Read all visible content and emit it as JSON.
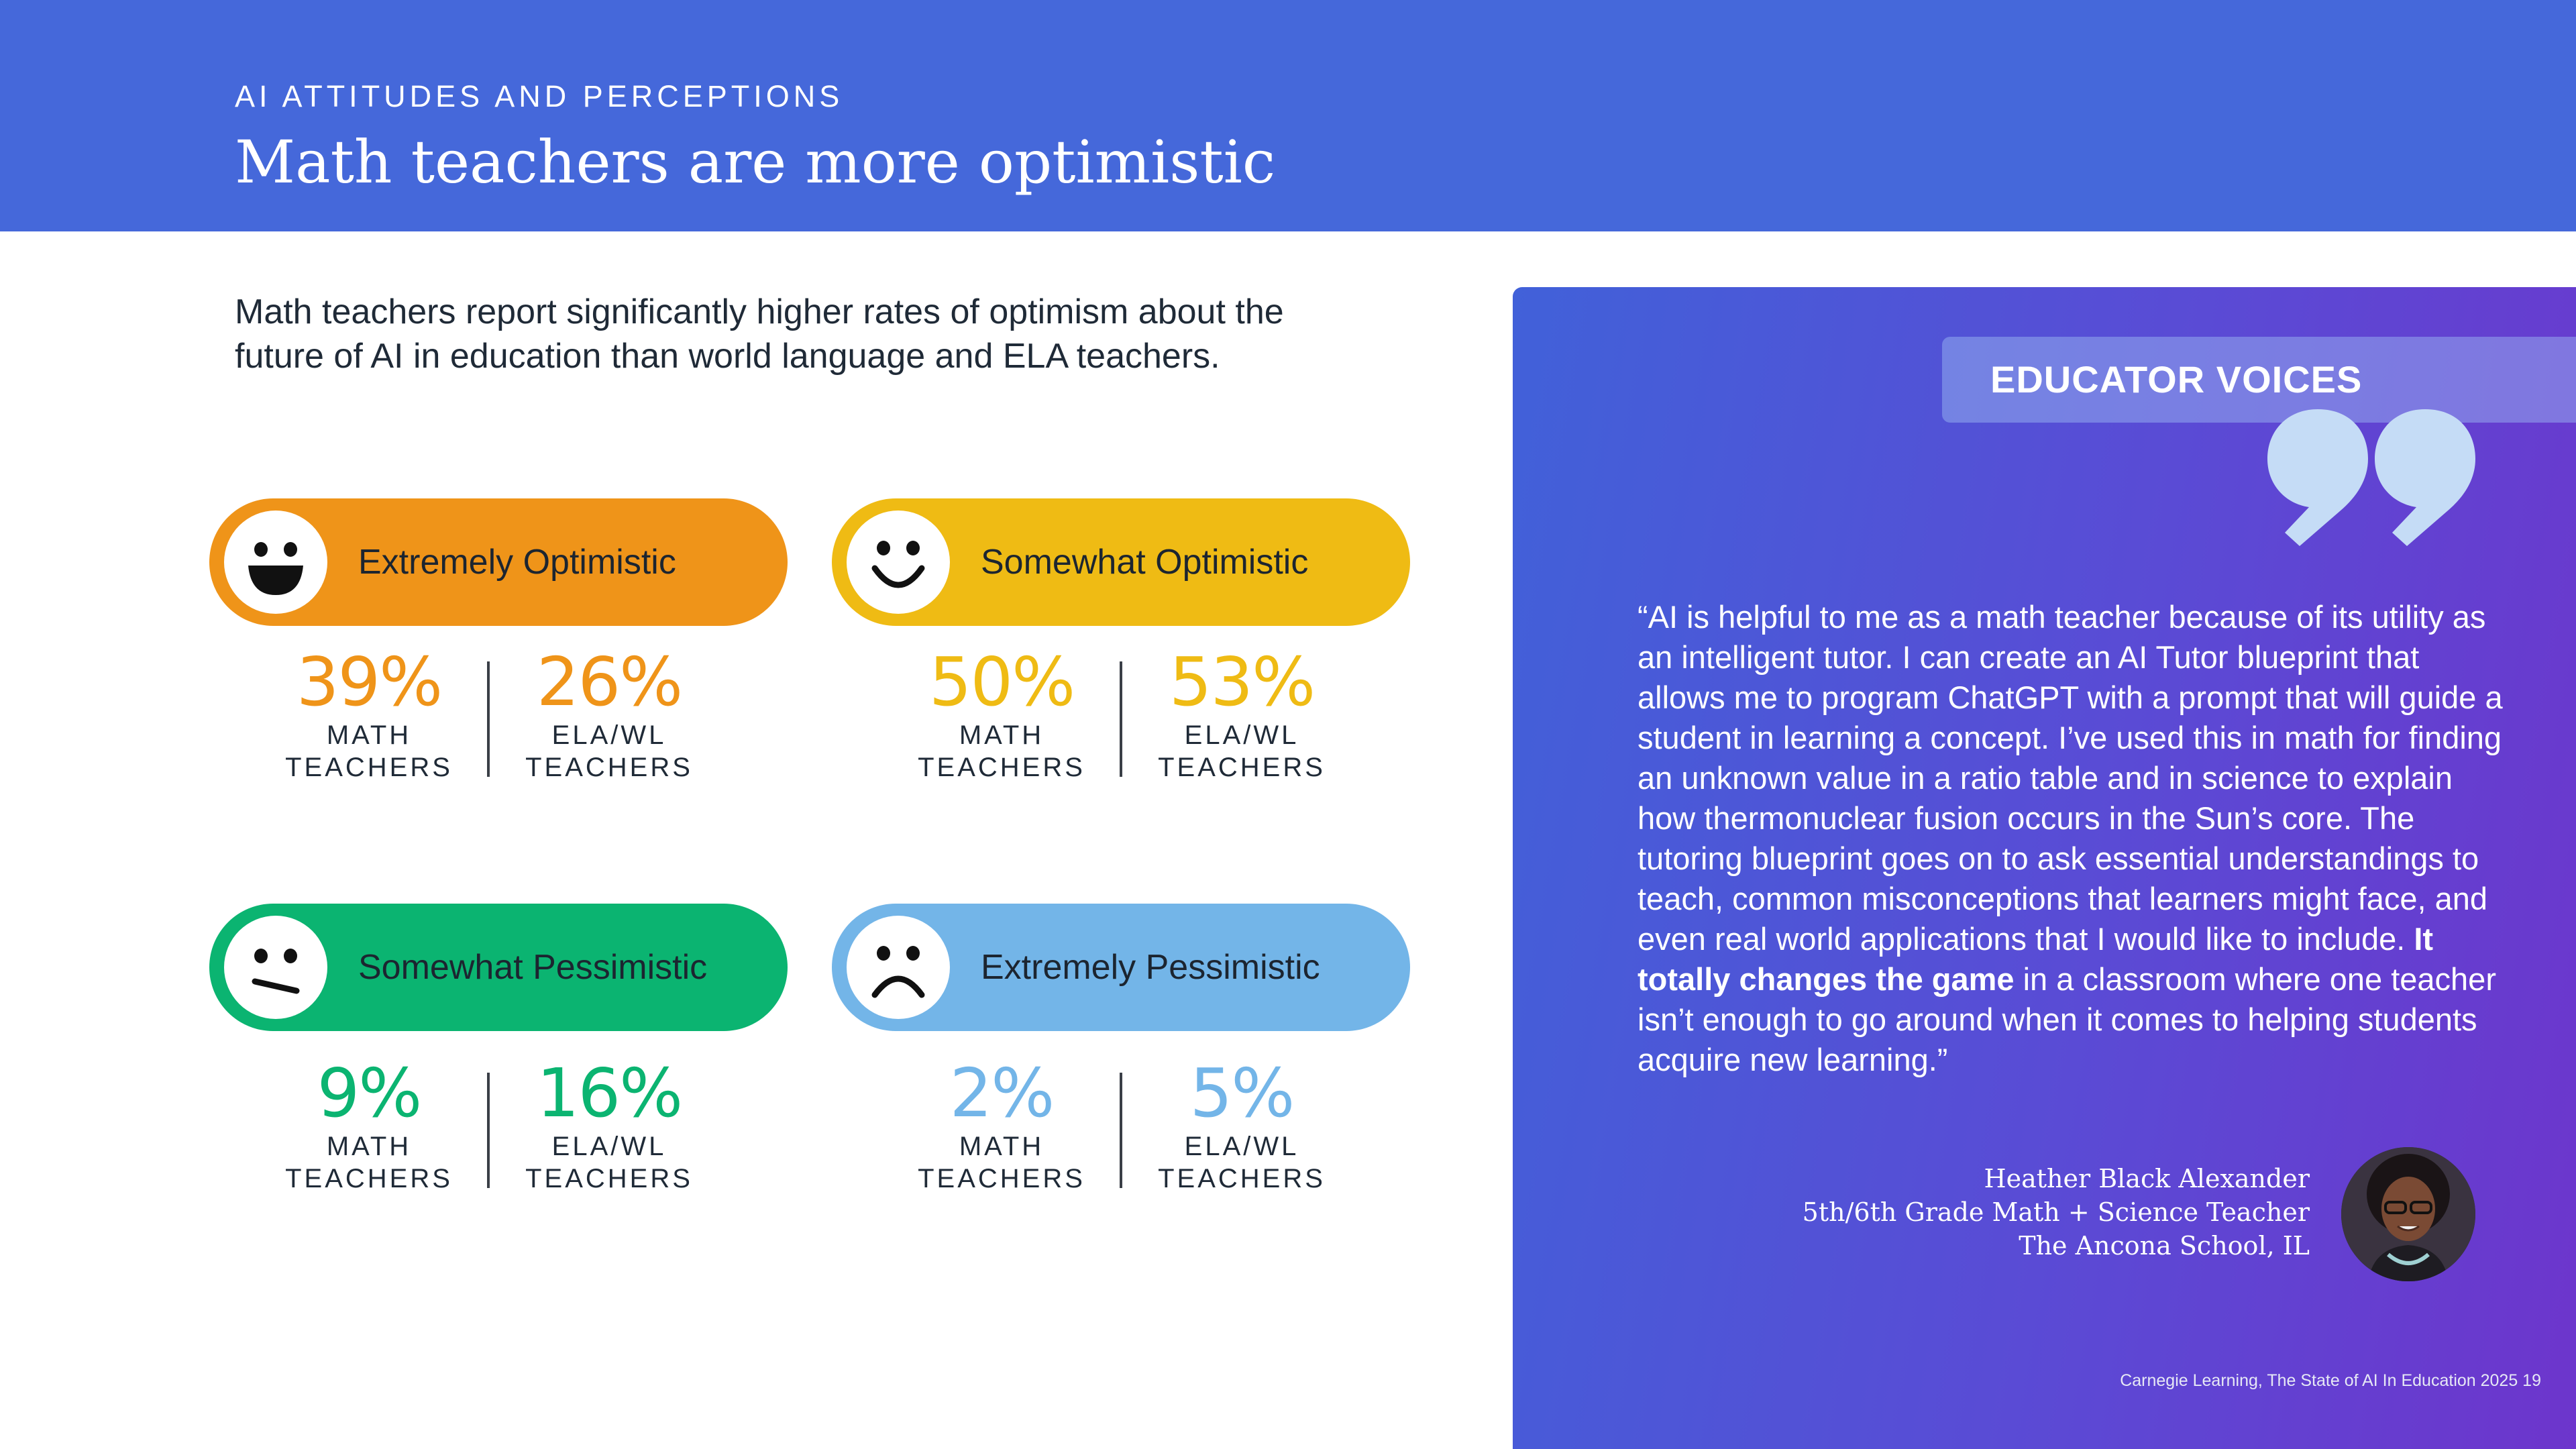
{
  "header": {
    "eyebrow": "AI ATTITUDES AND PERCEPTIONS",
    "title": "Math teachers are more optimistic"
  },
  "intro": "Math teachers report significantly higher rates of optimism about the future of AI in education than world language and ELA teachers.",
  "colors": {
    "header_bg": "#4568da",
    "extremely_optimistic": "#ef9419",
    "somewhat_optimistic": "#efbb14",
    "somewhat_pessimistic": "#0bb471",
    "extremely_pessimistic": "#73b5e8"
  },
  "categories": [
    {
      "label": "Extremely Optimistic",
      "icon": "big-grin-face-icon",
      "color": "#ef9419",
      "math_pct": "39%",
      "ela_pct": "26%"
    },
    {
      "label": "Somewhat Optimistic",
      "icon": "smile-face-icon",
      "color": "#efbb14",
      "math_pct": "50%",
      "ela_pct": "53%"
    },
    {
      "label": "Somewhat Pessimistic",
      "icon": "skeptical-face-icon",
      "color": "#0bb471",
      "math_pct": "9%",
      "ela_pct": "16%"
    },
    {
      "label": "Extremely Pessimistic",
      "icon": "frown-face-icon",
      "color": "#73b5e8",
      "math_pct": "2%",
      "ela_pct": "5%"
    }
  ],
  "stat_labels": {
    "math_line1": "MATH",
    "math_line2": "TEACHERS",
    "ela_line1": "ELA/WL",
    "ela_line2": "TEACHERS"
  },
  "voices": {
    "banner": "EDUCATOR VOICES",
    "quote_before": "“AI is helpful to me as a math teacher because of its utility as an intelligent tutor. I can create an AI Tutor blueprint that allows me to program ChatGPT with a prompt that will guide a student in learning a concept. I’ve used this in math for finding an unknown value in a ratio table and in science to explain how thermonuclear fusion occurs in the Sun’s core. The tutoring blueprint goes on to ask essential understandings to teach, common misconceptions that learners might face, and even real world applications that I would like to include. ",
    "quote_bold": "It totally changes the game",
    "quote_after": " in a classroom where one teacher isn’t enough to go around when it comes to helping students acquire new learning.”",
    "name": "Heather Black Alexander",
    "role": "5th/6th Grade Math + Science Teacher",
    "school": "The Ancona School, IL"
  },
  "footer": "Carnegie Learning, The State of AI In Education 2025   19"
}
